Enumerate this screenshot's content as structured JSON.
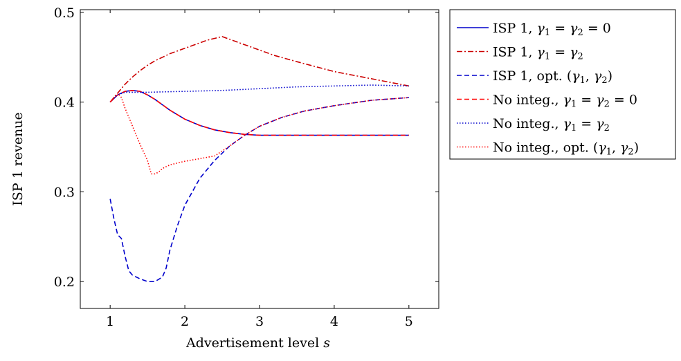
{
  "chart_data": {
    "type": "line",
    "xlabel": "Advertisement level",
    "xlabel_var": "s",
    "ylabel": "ISP 1 revenue",
    "xlim": [
      0.6,
      5.4
    ],
    "ylim": [
      0.17,
      0.503
    ],
    "xticks": [
      1,
      2,
      3,
      4,
      5
    ],
    "yticks": [
      0.2,
      0.3,
      0.4,
      0.5
    ],
    "xtick_labels": [
      "1",
      "2",
      "3",
      "4",
      "5"
    ],
    "ytick_labels": [
      "0.2",
      "0.3",
      "0.4",
      "0.5"
    ],
    "grid": false,
    "legend_position": "outside-right-top",
    "series": [
      {
        "legend": {
          "base": "ISP 1, ",
          "math": "γ1=γ2=0"
        },
        "color": "#0000cc",
        "dash": "solid",
        "x": [
          1.0,
          1.1,
          1.2,
          1.3,
          1.4,
          1.5,
          1.6,
          1.7,
          1.8,
          1.9,
          2.0,
          2.2,
          2.4,
          2.6,
          2.8,
          3.0,
          3.3,
          3.6,
          4.0,
          4.5,
          5.0
        ],
        "y": [
          0.4,
          0.408,
          0.412,
          0.413,
          0.412,
          0.408,
          0.403,
          0.397,
          0.391,
          0.386,
          0.381,
          0.374,
          0.369,
          0.366,
          0.364,
          0.363,
          0.363,
          0.363,
          0.363,
          0.363,
          0.363
        ]
      },
      {
        "legend": {
          "base": "ISP 1, ",
          "math": "γ1=γ2"
        },
        "color": "#cc0000",
        "dash": "dashdot",
        "x": [
          1.0,
          1.1,
          1.2,
          1.3,
          1.4,
          1.5,
          1.6,
          1.7,
          1.8,
          1.9,
          2.0,
          2.1,
          2.2,
          2.3,
          2.4,
          2.5,
          2.6,
          2.8,
          3.0,
          3.2,
          3.5,
          4.0,
          4.5,
          5.0
        ],
        "y": [
          0.4,
          0.41,
          0.42,
          0.428,
          0.435,
          0.441,
          0.446,
          0.45,
          0.454,
          0.457,
          0.46,
          0.463,
          0.466,
          0.469,
          0.471,
          0.473,
          0.47,
          0.464,
          0.458,
          0.452,
          0.445,
          0.434,
          0.426,
          0.418
        ]
      },
      {
        "legend": {
          "base": "ISP 1, opt. ",
          "math": "(γ1,γ2)"
        },
        "color": "#0000cc",
        "dash": "dashed",
        "x": [
          1.0,
          1.05,
          1.1,
          1.15,
          1.2,
          1.25,
          1.3,
          1.4,
          1.5,
          1.6,
          1.7,
          1.75,
          1.8,
          1.9,
          2.0,
          2.2,
          2.4,
          2.6,
          2.8,
          3.0,
          3.3,
          3.6,
          4.0,
          4.5,
          5.0
        ],
        "y": [
          0.292,
          0.27,
          0.252,
          0.248,
          0.228,
          0.212,
          0.207,
          0.203,
          0.2,
          0.2,
          0.205,
          0.215,
          0.235,
          0.262,
          0.285,
          0.315,
          0.335,
          0.351,
          0.363,
          0.373,
          0.383,
          0.39,
          0.396,
          0.402,
          0.405
        ]
      },
      {
        "legend": {
          "base": "No integ., ",
          "math": "γ1=γ2=0"
        },
        "color": "#ff0000",
        "dash": "dashed",
        "x": [
          1.0,
          1.1,
          1.2,
          1.3,
          1.4,
          1.5,
          1.6,
          1.7,
          1.8,
          1.9,
          2.0,
          2.2,
          2.4,
          2.6,
          2.8,
          3.0,
          3.3,
          3.6,
          4.0,
          4.5,
          5.0
        ],
        "y": [
          0.4,
          0.408,
          0.412,
          0.413,
          0.412,
          0.408,
          0.403,
          0.397,
          0.391,
          0.386,
          0.381,
          0.374,
          0.369,
          0.366,
          0.364,
          0.363,
          0.363,
          0.363,
          0.363,
          0.363,
          0.363
        ]
      },
      {
        "legend": {
          "base": "No integ., ",
          "math": "γ1=γ2"
        },
        "color": "#0000cc",
        "dash": "dotted",
        "x": [
          1.0,
          1.1,
          1.2,
          1.3,
          1.5,
          2.0,
          2.5,
          3.0,
          3.5,
          4.0,
          4.5,
          5.0
        ],
        "y": [
          0.4,
          0.408,
          0.411,
          0.411,
          0.411,
          0.412,
          0.413,
          0.415,
          0.417,
          0.418,
          0.419,
          0.418
        ]
      },
      {
        "legend": {
          "base": "No integ., opt. ",
          "math": "(γ1,γ2)"
        },
        "color": "#ff0000",
        "dash": "dotted",
        "x": [
          1.0,
          1.1,
          1.15,
          1.2,
          1.3,
          1.4,
          1.5,
          1.55,
          1.6,
          1.65,
          1.7,
          1.8,
          2.0,
          2.2,
          2.4,
          2.6,
          2.8,
          3.0,
          3.3,
          3.6,
          4.0,
          4.5,
          5.0
        ],
        "y": [
          0.4,
          0.41,
          0.405,
          0.393,
          0.373,
          0.353,
          0.335,
          0.32,
          0.32,
          0.322,
          0.326,
          0.33,
          0.334,
          0.337,
          0.34,
          0.351,
          0.363,
          0.373,
          0.383,
          0.39,
          0.396,
          0.402,
          0.405
        ]
      }
    ]
  }
}
